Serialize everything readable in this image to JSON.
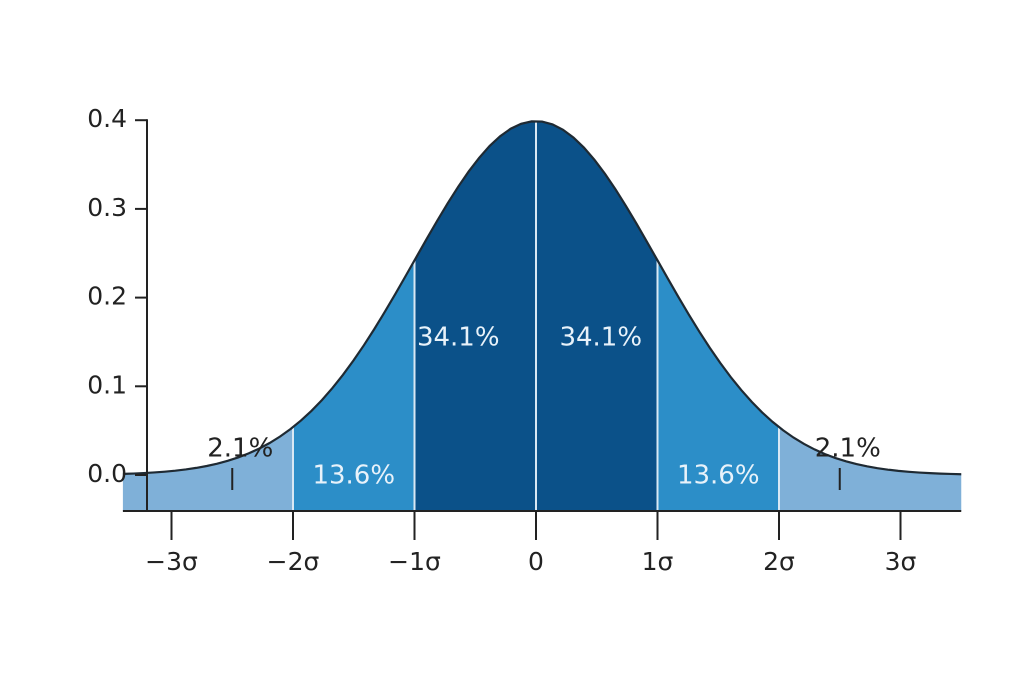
{
  "chart_data": {
    "type": "area",
    "title": "",
    "xlabel": "",
    "ylabel": "",
    "curve": "normal probability density",
    "mean": 0,
    "sd": 1,
    "xlim": [
      -3.4,
      3.5
    ],
    "ylim": [
      0,
      0.4
    ],
    "grid": false,
    "x_ticks": [
      {
        "value": -3,
        "label": "−3σ"
      },
      {
        "value": -2,
        "label": "−2σ"
      },
      {
        "value": -1,
        "label": "−1σ"
      },
      {
        "value": 0,
        "label": "0"
      },
      {
        "value": 1,
        "label": "1σ"
      },
      {
        "value": 2,
        "label": "2σ"
      },
      {
        "value": 3,
        "label": "3σ"
      }
    ],
    "y_ticks": [
      {
        "value": 0.0,
        "label": "0.0"
      },
      {
        "value": 0.1,
        "label": "0.1"
      },
      {
        "value": 0.2,
        "label": "0.2"
      },
      {
        "value": 0.3,
        "label": "0.3"
      },
      {
        "value": 0.4,
        "label": "0.4"
      }
    ],
    "bands": [
      {
        "from": -3.4,
        "to": -2,
        "label": "2.1%",
        "color": "#7fb0d8",
        "label_color": "#222222",
        "label_placement": "callout",
        "callout_x": -2.5
      },
      {
        "from": -2,
        "to": -1,
        "label": "13.6%",
        "color": "#2c8ec8",
        "label_color": "#e8f2fa",
        "label_placement": "inside-low"
      },
      {
        "from": -1,
        "to": 0,
        "label": "34.1%",
        "color": "#0b5189",
        "label_color": "#e8f2fa",
        "label_placement": "inside-mid"
      },
      {
        "from": 0,
        "to": 1,
        "label": "34.1%",
        "color": "#0b5189",
        "label_color": "#e8f2fa",
        "label_placement": "inside-mid"
      },
      {
        "from": 1,
        "to": 2,
        "label": "13.6%",
        "color": "#2c8ec8",
        "label_color": "#e8f2fa",
        "label_placement": "inside-low"
      },
      {
        "from": 2,
        "to": 3.5,
        "label": "2.1%",
        "color": "#7fb0d8",
        "label_color": "#222222",
        "label_placement": "callout",
        "callout_x": 2.5
      }
    ],
    "colors": {
      "curve_line": "#1f2a33",
      "axis": "#222222",
      "divider": "#d9e8f4"
    }
  }
}
